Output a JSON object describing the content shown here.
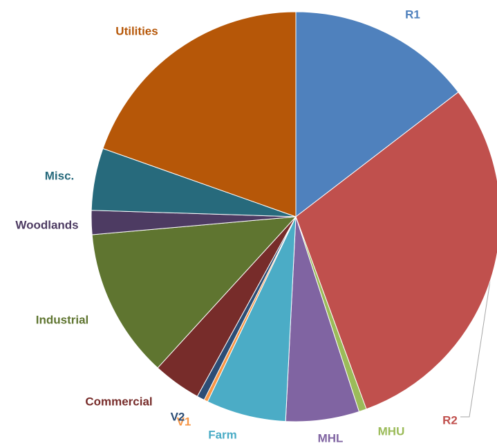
{
  "chart_data": {
    "type": "pie",
    "categories": [
      "R1",
      "R2",
      "MHU",
      "MHL",
      "Farm",
      "V1",
      "V2",
      "Commercial",
      "Industrial",
      "Woodlands",
      "Misc.",
      "Utilities"
    ],
    "values": [
      14.6,
      29.8,
      0.6,
      5.8,
      6.3,
      0.3,
      0.6,
      3.8,
      11.8,
      1.9,
      4.9,
      19.6
    ],
    "colors": [
      "#4f81bd",
      "#c0504d",
      "#9bbb59",
      "#8064a2",
      "#4bacc6",
      "#f79646",
      "#2c4d75",
      "#772c2a",
      "#5f7530",
      "#4d3b62",
      "#276a7c",
      "#b65708"
    ]
  }
}
